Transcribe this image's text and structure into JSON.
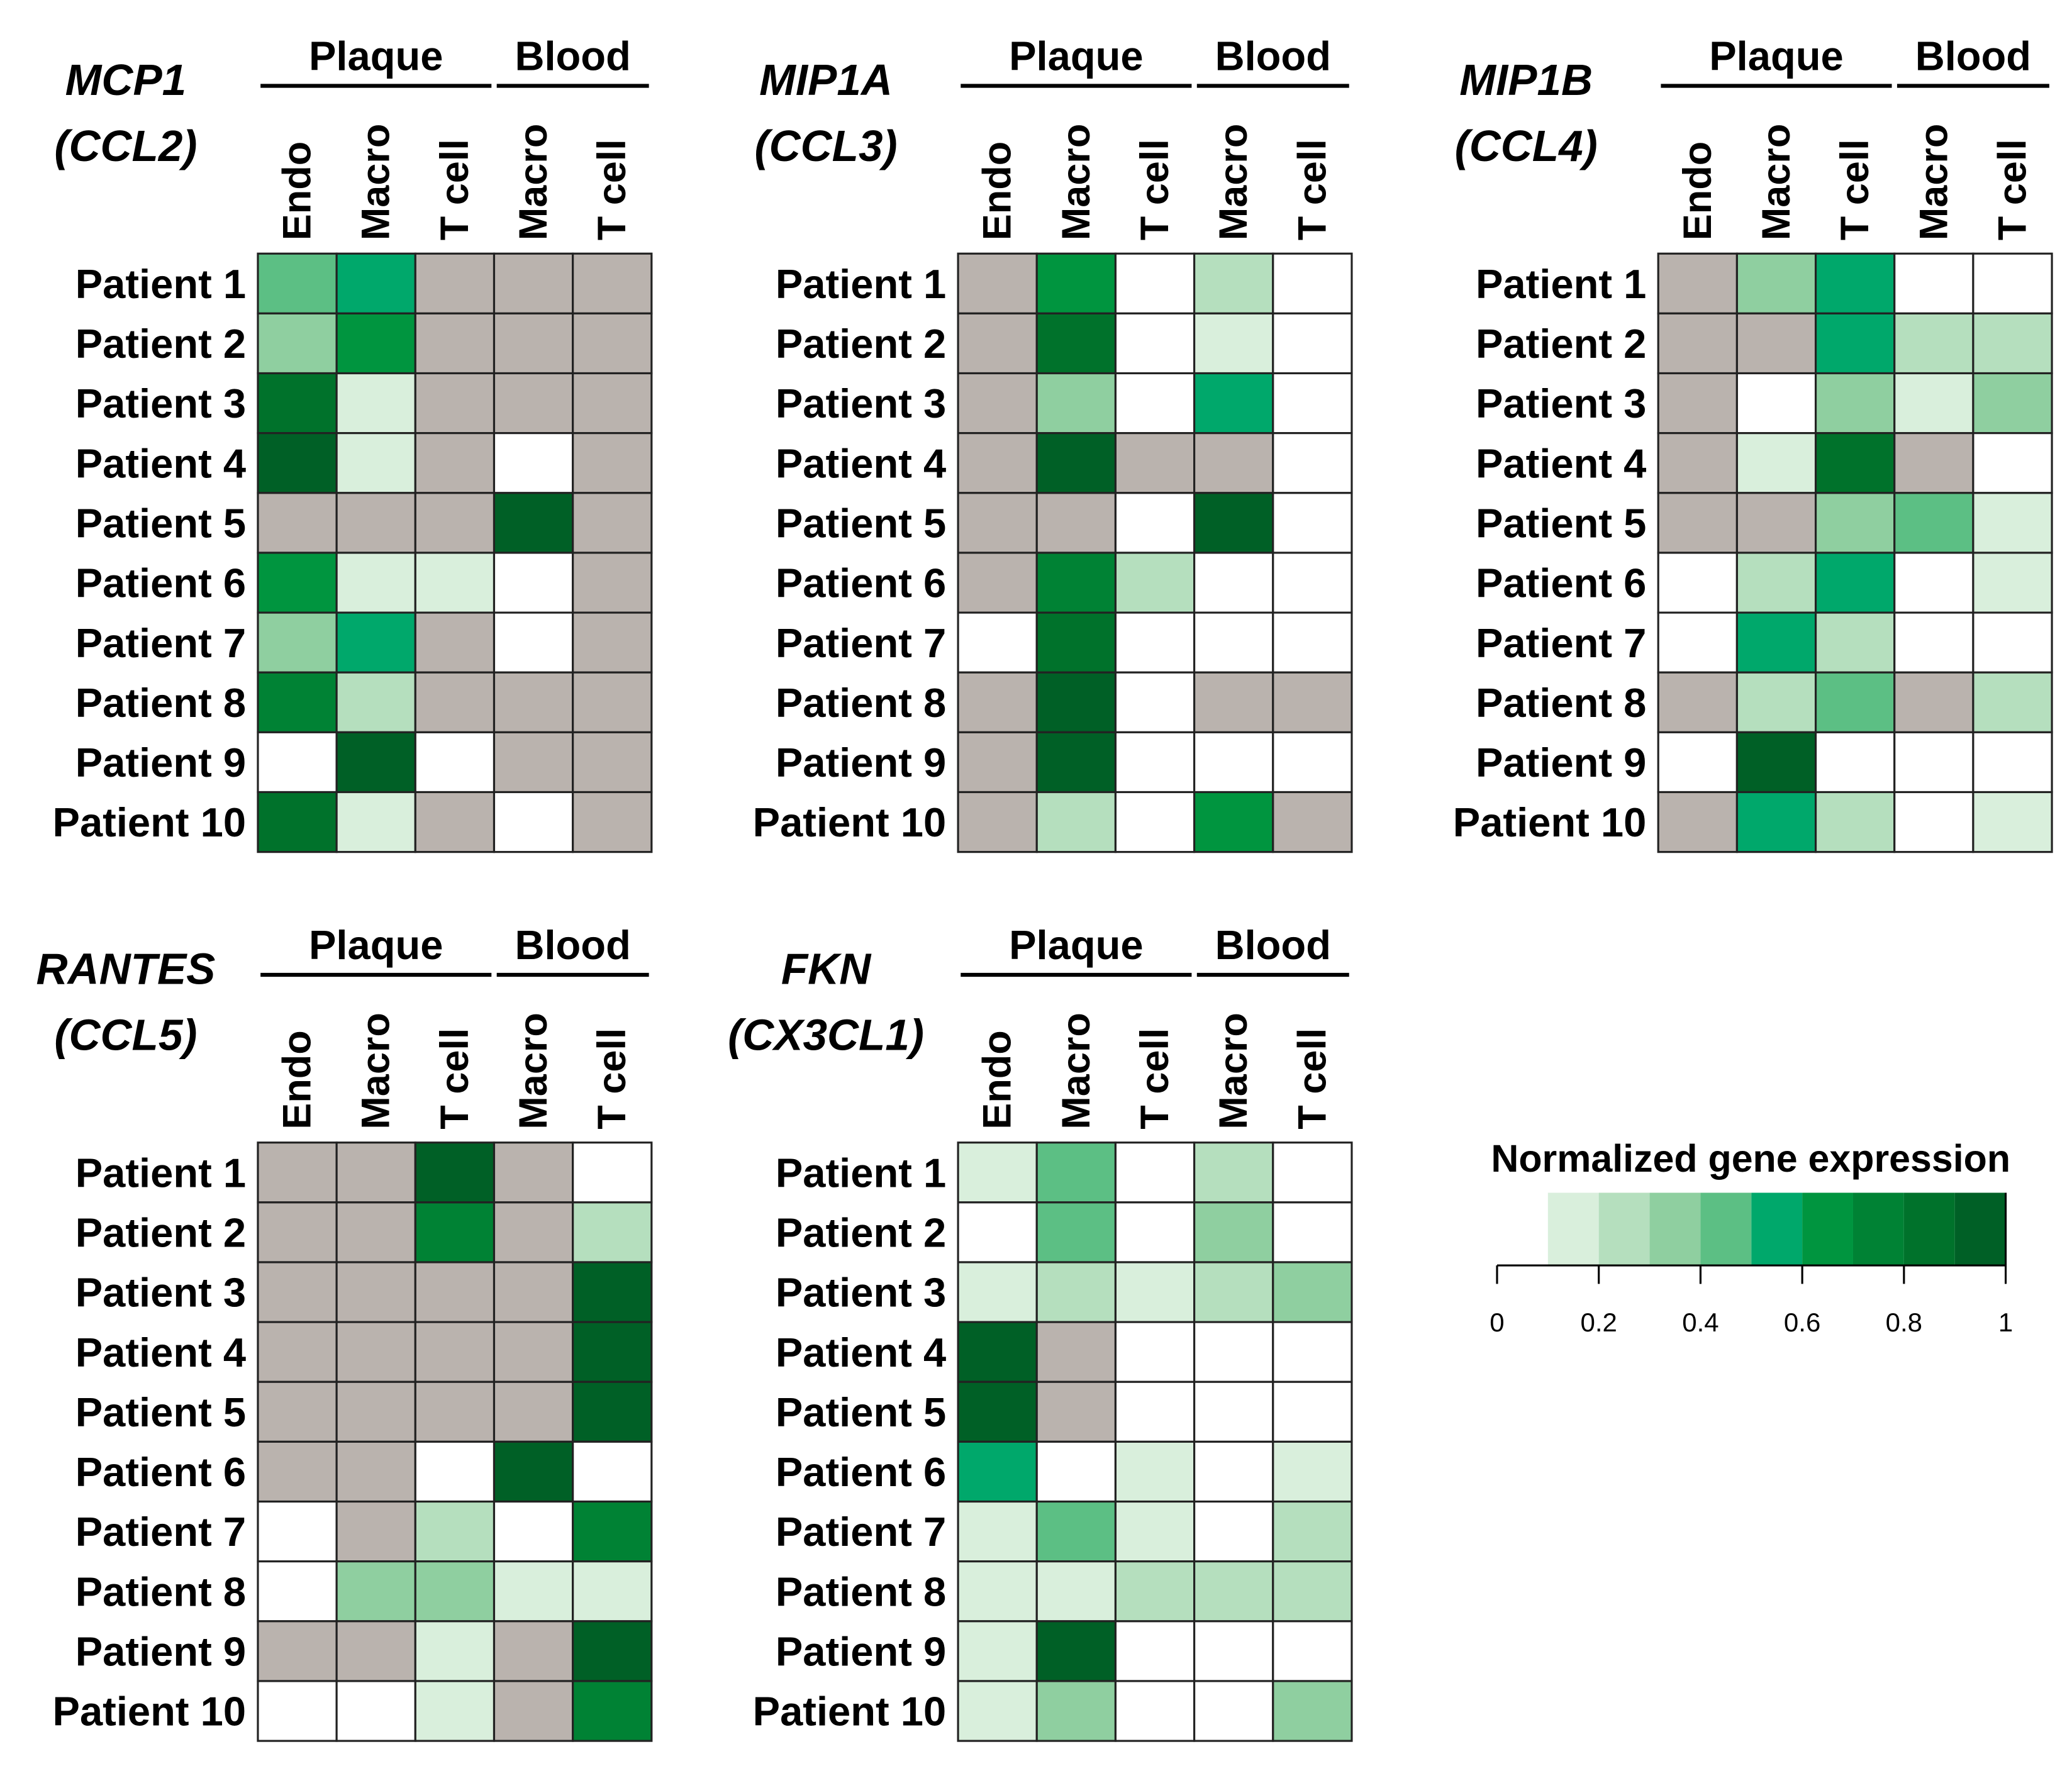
{
  "chart_data": [
    {
      "type": "heatmap",
      "title": "MCP1",
      "subtitle": "(CCL2)",
      "x_groups": [
        {
          "name": "Plaque",
          "categories": [
            "Endo",
            "Macro",
            "T cell"
          ]
        },
        {
          "name": "Blood",
          "categories": [
            "Macro",
            "T cell"
          ]
        }
      ],
      "rows": [
        "Patient 1",
        "Patient 2",
        "Patient 3",
        "Patient 4",
        "Patient 5",
        "Patient 6",
        "Patient 7",
        "Patient 8",
        "Patient 9",
        "Patient 10"
      ],
      "values": [
        [
          0.45,
          0.55,
          null,
          null,
          null
        ],
        [
          0.35,
          0.65,
          null,
          null,
          null
        ],
        [
          0.85,
          0.15,
          null,
          null,
          null
        ],
        [
          0.9,
          0.15,
          null,
          0,
          null
        ],
        [
          null,
          null,
          null,
          0.95,
          null
        ],
        [
          0.6,
          0.15,
          0.15,
          0,
          null
        ],
        [
          0.35,
          0.55,
          null,
          0,
          null
        ],
        [
          0.75,
          0.25,
          null,
          null,
          null
        ],
        [
          0,
          0.95,
          0,
          null,
          null
        ],
        [
          0.85,
          0.15,
          null,
          0,
          null
        ]
      ]
    },
    {
      "type": "heatmap",
      "title": "MIP1A",
      "subtitle": "(CCL3)",
      "x_groups": [
        {
          "name": "Plaque",
          "categories": [
            "Endo",
            "Macro",
            "T cell"
          ]
        },
        {
          "name": "Blood",
          "categories": [
            "Macro",
            "T cell"
          ]
        }
      ],
      "rows": [
        "Patient 1",
        "Patient 2",
        "Patient 3",
        "Patient 4",
        "Patient 5",
        "Patient 6",
        "Patient 7",
        "Patient 8",
        "Patient 9",
        "Patient 10"
      ],
      "values": [
        [
          null,
          0.65,
          0,
          0.25,
          0
        ],
        [
          null,
          0.85,
          0,
          0.15,
          0
        ],
        [
          null,
          0.35,
          0,
          0.55,
          0
        ],
        [
          null,
          0.95,
          null,
          null,
          0
        ],
        [
          null,
          null,
          0,
          0.95,
          0
        ],
        [
          null,
          0.75,
          0.25,
          0,
          0
        ],
        [
          0,
          0.85,
          0,
          0,
          0
        ],
        [
          null,
          0.9,
          0,
          null,
          null
        ],
        [
          null,
          0.9,
          0,
          0,
          0
        ],
        [
          null,
          0.25,
          0,
          0.65,
          null
        ]
      ]
    },
    {
      "type": "heatmap",
      "title": "MIP1B",
      "subtitle": "(CCL4)",
      "x_groups": [
        {
          "name": "Plaque",
          "categories": [
            "Endo",
            "Macro",
            "T cell"
          ]
        },
        {
          "name": "Blood",
          "categories": [
            "Macro",
            "T cell"
          ]
        }
      ],
      "rows": [
        "Patient 1",
        "Patient 2",
        "Patient 3",
        "Patient 4",
        "Patient 5",
        "Patient 6",
        "Patient 7",
        "Patient 8",
        "Patient 9",
        "Patient 10"
      ],
      "values": [
        [
          null,
          0.35,
          0.55,
          0,
          0
        ],
        [
          null,
          null,
          0.55,
          0.25,
          0.25
        ],
        [
          null,
          0,
          0.35,
          0.15,
          0.35
        ],
        [
          null,
          0.15,
          0.8,
          null,
          0
        ],
        [
          null,
          null,
          0.35,
          0.45,
          0.15
        ],
        [
          0,
          0.25,
          0.55,
          0,
          0.15
        ],
        [
          0,
          0.55,
          0.25,
          0,
          0
        ],
        [
          null,
          0.25,
          0.45,
          null,
          0.25
        ],
        [
          0,
          0.95,
          0,
          0,
          0
        ],
        [
          null,
          0.55,
          0.25,
          0,
          0.15
        ]
      ]
    },
    {
      "type": "heatmap",
      "title": "RANTES",
      "subtitle": "(CCL5)",
      "x_groups": [
        {
          "name": "Plaque",
          "categories": [
            "Endo",
            "Macro",
            "T cell"
          ]
        },
        {
          "name": "Blood",
          "categories": [
            "Macro",
            "T cell"
          ]
        }
      ],
      "rows": [
        "Patient 1",
        "Patient 2",
        "Patient 3",
        "Patient 4",
        "Patient 5",
        "Patient 6",
        "Patient 7",
        "Patient 8",
        "Patient 9",
        "Patient 10"
      ],
      "values": [
        [
          null,
          null,
          0.95,
          null,
          0
        ],
        [
          null,
          null,
          0.75,
          null,
          0.25
        ],
        [
          null,
          null,
          null,
          null,
          0.95
        ],
        [
          null,
          null,
          null,
          null,
          0.95
        ],
        [
          null,
          null,
          null,
          null,
          0.95
        ],
        [
          null,
          null,
          0,
          0.95,
          0
        ],
        [
          0,
          null,
          0.25,
          0,
          0.75
        ],
        [
          0,
          0.35,
          0.35,
          0.15,
          0.15
        ],
        [
          null,
          null,
          0.15,
          null,
          0.9
        ],
        [
          0,
          0,
          0.15,
          null,
          0.75
        ]
      ]
    },
    {
      "type": "heatmap",
      "title": "FKN",
      "subtitle": "(CX3CL1)",
      "x_groups": [
        {
          "name": "Plaque",
          "categories": [
            "Endo",
            "Macro",
            "T cell"
          ]
        },
        {
          "name": "Blood",
          "categories": [
            "Macro",
            "T cell"
          ]
        }
      ],
      "rows": [
        "Patient 1",
        "Patient 2",
        "Patient 3",
        "Patient 4",
        "Patient 5",
        "Patient 6",
        "Patient 7",
        "Patient 8",
        "Patient 9",
        "Patient 10"
      ],
      "values": [
        [
          0.15,
          0.45,
          0,
          0.25,
          0
        ],
        [
          0,
          0.45,
          0,
          0.35,
          0
        ],
        [
          0.15,
          0.25,
          0.15,
          0.25,
          0.35
        ],
        [
          0.95,
          null,
          0,
          0,
          0
        ],
        [
          0.95,
          null,
          0,
          0,
          0
        ],
        [
          0.55,
          0,
          0.15,
          0,
          0.15
        ],
        [
          0.15,
          0.45,
          0.15,
          0,
          0.25
        ],
        [
          0.15,
          0.15,
          0.25,
          0.25,
          0.25
        ],
        [
          0.15,
          0.95,
          0,
          0,
          0
        ],
        [
          0.15,
          0.35,
          0,
          0,
          0.35
        ]
      ]
    },
    {
      "type": "colorbar",
      "title": "Normalized gene expression",
      "xlim": [
        0,
        1
      ],
      "xticks": [
        0,
        0.2,
        0.4,
        0.6,
        0.8,
        1
      ],
      "bins": [
        0.1,
        0.2,
        0.3,
        0.4,
        0.5,
        0.6,
        0.7,
        0.8,
        0.9,
        1
      ],
      "colors": [
        "#d9efdc",
        "#b5dfbe",
        "#8fcfa0",
        "#5cbf84",
        "#00a86b",
        "#00953f",
        "#008234",
        "#00722b",
        "#006026"
      ],
      "missing_color": "#bab3ae",
      "empty_color": "#ffffff"
    }
  ]
}
